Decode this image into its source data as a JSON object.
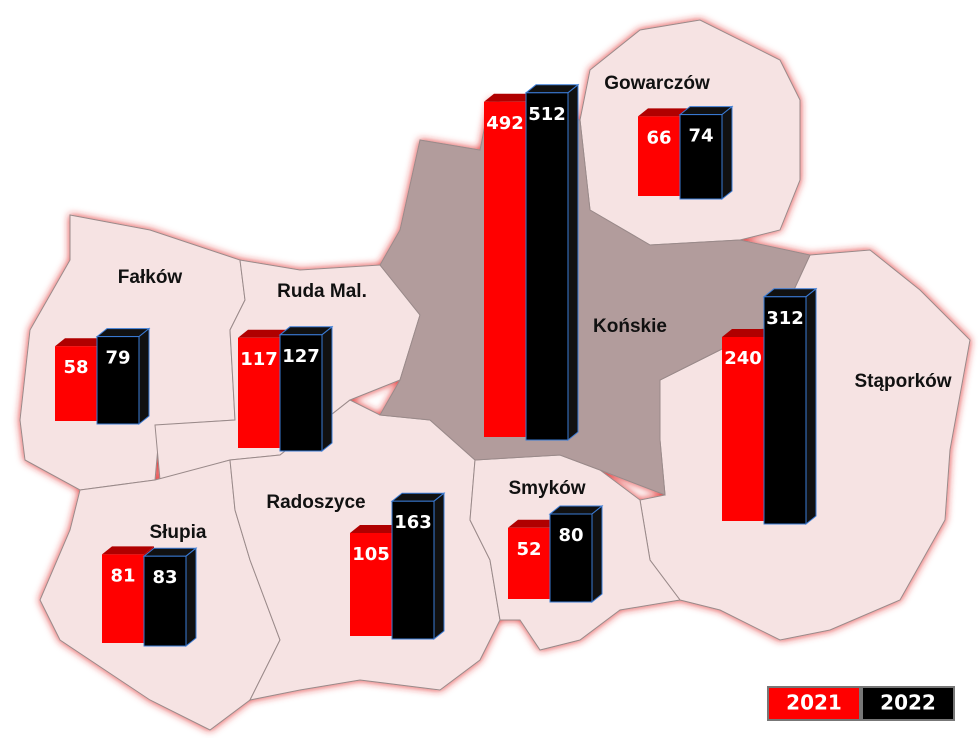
{
  "legend": [
    {
      "label": "2021",
      "color": "#ff0000"
    },
    {
      "label": "2022",
      "color": "#000000"
    }
  ],
  "regions": [
    {
      "name": "Fałków",
      "values": [
        58,
        79
      ]
    },
    {
      "name": "Ruda Mal.",
      "values": [
        117,
        127
      ]
    },
    {
      "name": "Końskie",
      "values": [
        492,
        512
      ]
    },
    {
      "name": "Gowarczów",
      "values": [
        66,
        74
      ]
    },
    {
      "name": "Stąporków",
      "values": [
        240,
        312
      ]
    },
    {
      "name": "Słupia",
      "values": [
        81,
        83
      ]
    },
    {
      "name": "Radoszyce",
      "values": [
        105,
        163
      ]
    },
    {
      "name": "Smyków",
      "values": [
        52,
        80
      ]
    }
  ]
}
